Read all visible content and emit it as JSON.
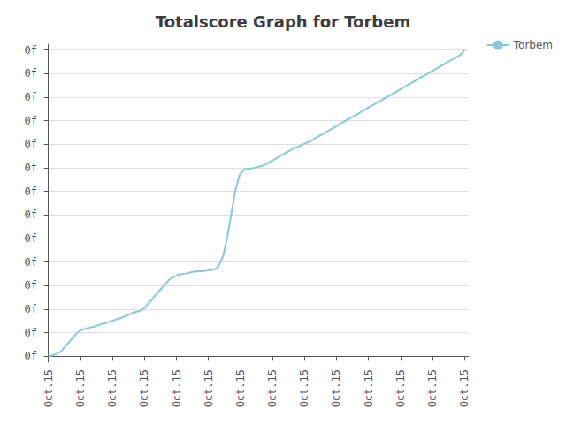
{
  "chart_data": {
    "type": "line",
    "title": "Totalscore Graph for Torbem",
    "legend": "upper right",
    "grid": true,
    "xlim": [
      -1,
      101
    ],
    "ylim": [
      -0.12307692307692308,
      6.523076923076923
    ],
    "xticks": [
      {
        "value": 0,
        "label": "Oct.15"
      },
      {
        "value": 7.6923076923076925,
        "label": "Oct.15"
      },
      {
        "value": 15.384615384615385,
        "label": "Oct.15"
      },
      {
        "value": 23.076923076923077,
        "label": "Oct.15"
      },
      {
        "value": 30.76923076923077,
        "label": "Oct.15"
      },
      {
        "value": 38.46153846153846,
        "label": "Oct.15"
      },
      {
        "value": 46.15384615384615,
        "label": "Oct.15"
      },
      {
        "value": 53.84615384615385,
        "label": "Oct.15"
      },
      {
        "value": 61.53846153846154,
        "label": "Oct.15"
      },
      {
        "value": 69.23076923076923,
        "label": "Oct.15"
      },
      {
        "value": 76.92307692307692,
        "label": "Oct.15"
      },
      {
        "value": 84.61538461538461,
        "label": "Oct.15"
      },
      {
        "value": 92.3076923076923,
        "label": "Oct.15"
      },
      {
        "value": 100,
        "label": "Oct.15"
      }
    ],
    "yticks": [
      {
        "value": 0,
        "label": "0f"
      },
      {
        "value": 0.49230769230769234,
        "label": "0f"
      },
      {
        "value": 0.9846153846153847,
        "label": "0f"
      },
      {
        "value": 1.476923076923077,
        "label": "0f"
      },
      {
        "value": 1.9692307692307693,
        "label": "0f"
      },
      {
        "value": 2.4615384615384617,
        "label": "0f"
      },
      {
        "value": 2.953846153846154,
        "label": "0f"
      },
      {
        "value": 3.446153846153846,
        "label": "0f"
      },
      {
        "value": 3.9384615384615387,
        "label": "0f"
      },
      {
        "value": 4.430769230769231,
        "label": "0f"
      },
      {
        "value": 4.923076923076923,
        "label": "0f"
      },
      {
        "value": 5.415384615384616,
        "label": "0f"
      },
      {
        "value": 5.907692307692308,
        "label": "0f"
      },
      {
        "value": 6.4,
        "label": "0f"
      }
    ],
    "x": [
      0,
      1,
      2,
      3,
      4,
      5,
      6,
      7,
      8,
      9,
      10,
      11,
      12,
      13,
      14,
      15,
      16,
      17,
      18,
      19,
      20,
      21,
      22,
      23,
      24,
      25,
      26,
      27,
      28,
      29,
      30,
      31,
      32,
      33,
      34,
      35,
      36,
      37,
      38,
      39,
      40,
      41,
      42,
      43,
      44,
      45,
      46,
      47,
      48,
      49,
      50,
      51,
      52,
      53,
      54,
      55,
      56,
      57,
      58,
      59,
      60,
      61,
      62,
      63,
      64,
      65,
      66,
      67,
      68,
      69,
      70,
      71,
      72,
      73,
      74,
      75,
      76,
      77,
      78,
      79,
      80,
      81,
      82,
      83,
      84,
      85,
      86,
      87,
      88,
      89,
      90,
      91,
      92,
      93,
      94,
      95,
      96,
      97,
      98,
      99,
      100
    ],
    "series": [
      {
        "name": "Torbem",
        "color": "#85c8e0",
        "values": [
          0,
          0.02,
          0.05,
          0.1,
          0.2,
          0.3,
          0.4,
          0.5,
          0.55,
          0.58,
          0.6,
          0.62,
          0.65,
          0.68,
          0.7,
          0.73,
          0.76,
          0.79,
          0.82,
          0.86,
          0.9,
          0.93,
          0.95,
          1.0,
          1.1,
          1.2,
          1.3,
          1.4,
          1.5,
          1.6,
          1.65,
          1.7,
          1.72,
          1.73,
          1.75,
          1.77,
          1.78,
          1.78,
          1.79,
          1.8,
          1.82,
          1.9,
          2.1,
          2.5,
          3.0,
          3.5,
          3.8,
          3.9,
          3.92,
          3.93,
          3.95,
          3.97,
          4.0,
          4.05,
          4.1,
          4.15,
          4.2,
          4.25,
          4.3,
          4.35,
          4.38,
          4.42,
          4.46,
          4.5,
          4.55,
          4.6,
          4.65,
          4.7,
          4.75,
          4.8,
          4.85,
          4.9,
          4.95,
          5.0,
          5.05,
          5.1,
          5.15,
          5.2,
          5.25,
          5.3,
          5.35,
          5.4,
          5.45,
          5.5,
          5.55,
          5.6,
          5.65,
          5.7,
          5.75,
          5.8,
          5.85,
          5.9,
          5.95,
          6.0,
          6.05,
          6.1,
          6.15,
          6.2,
          6.25,
          6.3,
          6.4
        ]
      }
    ]
  }
}
